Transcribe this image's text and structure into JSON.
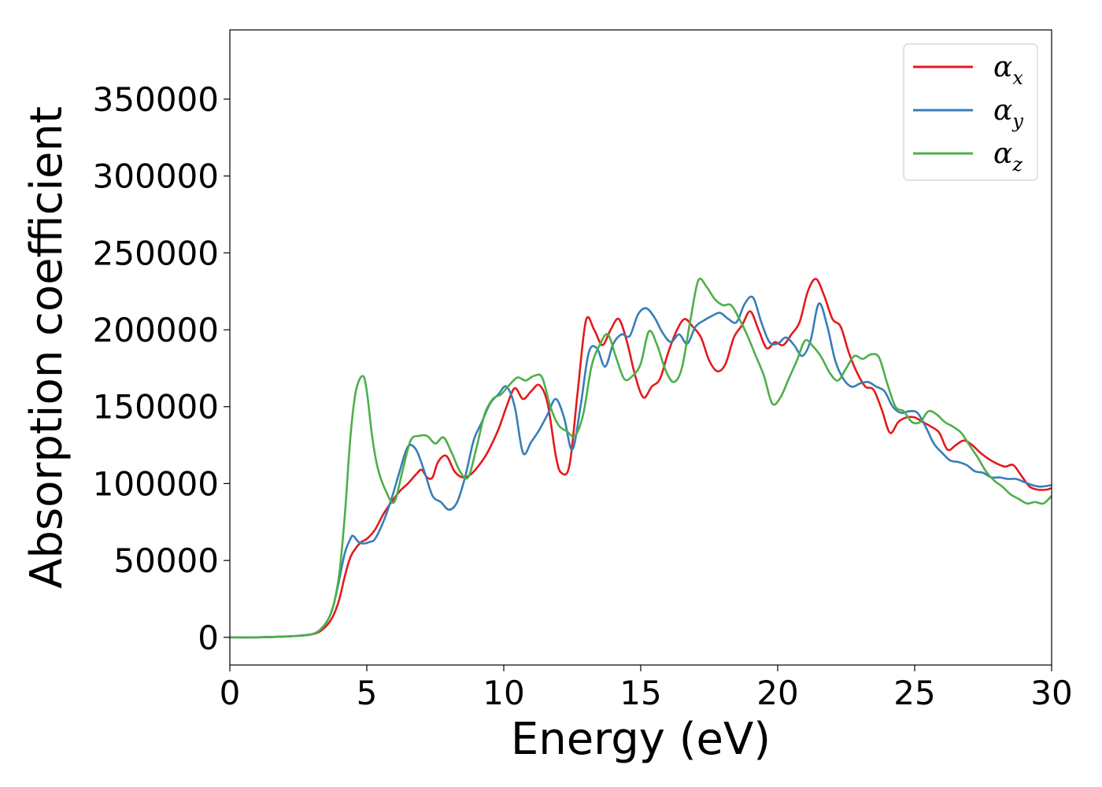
{
  "chart_data": {
    "type": "line",
    "title": "",
    "xlabel": "Energy (eV)",
    "ylabel": "Absorption coefficient",
    "xlim": [
      0,
      30
    ],
    "ylim": [
      -18000,
      395000
    ],
    "xticks": [
      0,
      5,
      10,
      15,
      20,
      25,
      30
    ],
    "yticks": [
      0,
      50000,
      100000,
      150000,
      200000,
      250000,
      300000,
      350000
    ],
    "grid": false,
    "legend_position": "top-right",
    "series": [
      {
        "name": "αx",
        "base": "α",
        "sub": "x",
        "color": "#e41a1c",
        "x": [
          0,
          1,
          2,
          2.5,
          3,
          3.3,
          3.6,
          3.8,
          4.0,
          4.2,
          4.4,
          4.6,
          4.8,
          5.0,
          5.3,
          5.6,
          5.9,
          6.2,
          6.5,
          6.8,
          7.0,
          7.2,
          7.4,
          7.6,
          7.9,
          8.2,
          8.5,
          8.8,
          9.1,
          9.4,
          9.8,
          10.1,
          10.4,
          10.7,
          11.0,
          11.3,
          11.6,
          11.9,
          12.1,
          12.4,
          12.7,
          13.0,
          13.3,
          13.6,
          13.9,
          14.2,
          14.5,
          14.8,
          15.1,
          15.4,
          15.7,
          16.0,
          16.3,
          16.6,
          16.9,
          17.2,
          17.5,
          17.8,
          18.1,
          18.4,
          18.7,
          19.0,
          19.3,
          19.6,
          19.9,
          20.2,
          20.5,
          20.8,
          21.1,
          21.4,
          21.7,
          22.0,
          22.3,
          22.6,
          22.9,
          23.2,
          23.5,
          23.8,
          24.1,
          24.4,
          24.7,
          25.0,
          25.3,
          25.6,
          25.9,
          26.2,
          26.5,
          26.8,
          27.1,
          27.4,
          27.7,
          28.0,
          28.3,
          28.6,
          28.9,
          29.2,
          29.5,
          29.8,
          30
        ],
        "y": [
          0,
          0,
          500,
          1000,
          2000,
          4000,
          9000,
          15000,
          25000,
          40000,
          52000,
          58000,
          62000,
          64000,
          70000,
          80000,
          88000,
          95000,
          100000,
          106000,
          109000,
          104000,
          104000,
          114000,
          118000,
          108000,
          104000,
          106000,
          112000,
          120000,
          135000,
          150000,
          162000,
          155000,
          160000,
          164000,
          152000,
          118000,
          107000,
          112000,
          160000,
          206000,
          200000,
          190000,
          200000,
          207000,
          192000,
          170000,
          156000,
          163000,
          168000,
          185000,
          199000,
          207000,
          202000,
          195000,
          180000,
          173000,
          178000,
          195000,
          203000,
          212000,
          200000,
          188000,
          192000,
          190000,
          197000,
          205000,
          225000,
          233000,
          222000,
          207000,
          202000,
          185000,
          172000,
          163000,
          161000,
          148000,
          133000,
          140000,
          143000,
          143000,
          140000,
          137000,
          133000,
          122000,
          125000,
          128000,
          125000,
          120000,
          116000,
          113000,
          111000,
          112000,
          105000,
          98000,
          96000,
          96000,
          97000
        ]
      },
      {
        "name": "αy",
        "base": "α",
        "sub": "y",
        "color": "#377eb8",
        "x": [
          0,
          1,
          2,
          2.5,
          3,
          3.3,
          3.6,
          3.8,
          4.0,
          4.2,
          4.4,
          4.5,
          4.7,
          4.9,
          5.1,
          5.3,
          5.6,
          5.9,
          6.2,
          6.5,
          6.8,
          7.1,
          7.4,
          7.7,
          8.0,
          8.3,
          8.6,
          8.9,
          9.2,
          9.5,
          9.8,
          10.1,
          10.4,
          10.7,
          11.0,
          11.3,
          11.6,
          11.9,
          12.2,
          12.5,
          12.8,
          13.1,
          13.4,
          13.7,
          14.0,
          14.3,
          14.6,
          14.9,
          15.2,
          15.5,
          15.8,
          16.1,
          16.4,
          16.7,
          17.0,
          17.3,
          17.6,
          17.9,
          18.2,
          18.5,
          18.8,
          19.1,
          19.4,
          19.7,
          20.0,
          20.3,
          20.6,
          20.9,
          21.2,
          21.5,
          21.8,
          22.1,
          22.4,
          22.7,
          23.0,
          23.3,
          23.6,
          23.9,
          24.2,
          24.5,
          24.8,
          25.1,
          25.4,
          25.7,
          26.0,
          26.3,
          26.6,
          26.9,
          27.2,
          27.5,
          27.8,
          28.1,
          28.4,
          28.7,
          29.0,
          29.3,
          29.6,
          30
        ],
        "y": [
          0,
          0,
          500,
          1000,
          2000,
          5000,
          12000,
          22000,
          38000,
          55000,
          64000,
          66000,
          62000,
          61000,
          62000,
          64000,
          75000,
          90000,
          108000,
          124000,
          122000,
          108000,
          92000,
          88000,
          83000,
          88000,
          105000,
          128000,
          140000,
          152000,
          158000,
          163000,
          150000,
          120000,
          127000,
          135000,
          145000,
          155000,
          143000,
          122000,
          150000,
          185000,
          188000,
          176000,
          191000,
          197000,
          196000,
          210000,
          214000,
          208000,
          198000,
          192000,
          197000,
          191000,
          202000,
          206000,
          209000,
          211000,
          207000,
          205000,
          217000,
          221000,
          205000,
          192000,
          191000,
          195000,
          190000,
          183000,
          193000,
          217000,
          203000,
          180000,
          168000,
          163000,
          165000,
          166000,
          163000,
          160000,
          150000,
          146000,
          147000,
          146000,
          137000,
          126000,
          120000,
          115000,
          114000,
          112000,
          108000,
          107000,
          104000,
          104000,
          103000,
          103000,
          101000,
          99000,
          98000,
          99000
        ]
      },
      {
        "name": "αz",
        "base": "α",
        "sub": "z",
        "color": "#4daf4a",
        "x": [
          0,
          1,
          2,
          2.5,
          3,
          3.3,
          3.6,
          3.8,
          4.0,
          4.2,
          4.4,
          4.6,
          4.85,
          5.0,
          5.2,
          5.4,
          5.7,
          6.0,
          6.3,
          6.6,
          6.9,
          7.2,
          7.5,
          7.8,
          8.1,
          8.4,
          8.7,
          9.0,
          9.3,
          9.6,
          9.9,
          10.2,
          10.5,
          10.8,
          11.1,
          11.4,
          11.7,
          12.0,
          12.3,
          12.6,
          12.9,
          13.2,
          13.5,
          13.8,
          14.1,
          14.4,
          14.7,
          15.0,
          15.3,
          15.6,
          15.9,
          16.2,
          16.5,
          16.8,
          17.1,
          17.4,
          17.7,
          18.0,
          18.3,
          18.6,
          18.9,
          19.2,
          19.5,
          19.8,
          20.1,
          20.4,
          20.7,
          21.0,
          21.3,
          21.6,
          21.9,
          22.2,
          22.5,
          22.8,
          23.1,
          23.4,
          23.7,
          24.0,
          24.3,
          24.6,
          24.9,
          25.2,
          25.5,
          25.8,
          26.1,
          26.4,
          26.7,
          27.0,
          27.3,
          27.6,
          27.9,
          28.2,
          28.5,
          28.8,
          29.1,
          29.4,
          29.7,
          30
        ],
        "y": [
          0,
          0,
          500,
          1000,
          2000,
          5000,
          12000,
          22000,
          42000,
          80000,
          130000,
          160000,
          170000,
          160000,
          130000,
          110000,
          95000,
          88000,
          108000,
          128000,
          131000,
          131000,
          126000,
          130000,
          120000,
          108000,
          104000,
          123000,
          145000,
          155000,
          158000,
          164000,
          169000,
          167000,
          170000,
          169000,
          150000,
          138000,
          134000,
          131000,
          145000,
          176000,
          190000,
          197000,
          182000,
          168000,
          170000,
          178000,
          199000,
          190000,
          174000,
          166000,
          175000,
          205000,
          232000,
          228000,
          220000,
          216000,
          216000,
          207000,
          196000,
          183000,
          170000,
          152000,
          156000,
          168000,
          180000,
          193000,
          189000,
          182000,
          172000,
          167000,
          175000,
          183000,
          181000,
          184000,
          182000,
          165000,
          150000,
          147000,
          140000,
          140000,
          147000,
          145000,
          140000,
          137000,
          133000,
          125000,
          117000,
          108000,
          102000,
          98000,
          93000,
          90000,
          87000,
          88000,
          87000,
          92000
        ]
      }
    ]
  }
}
